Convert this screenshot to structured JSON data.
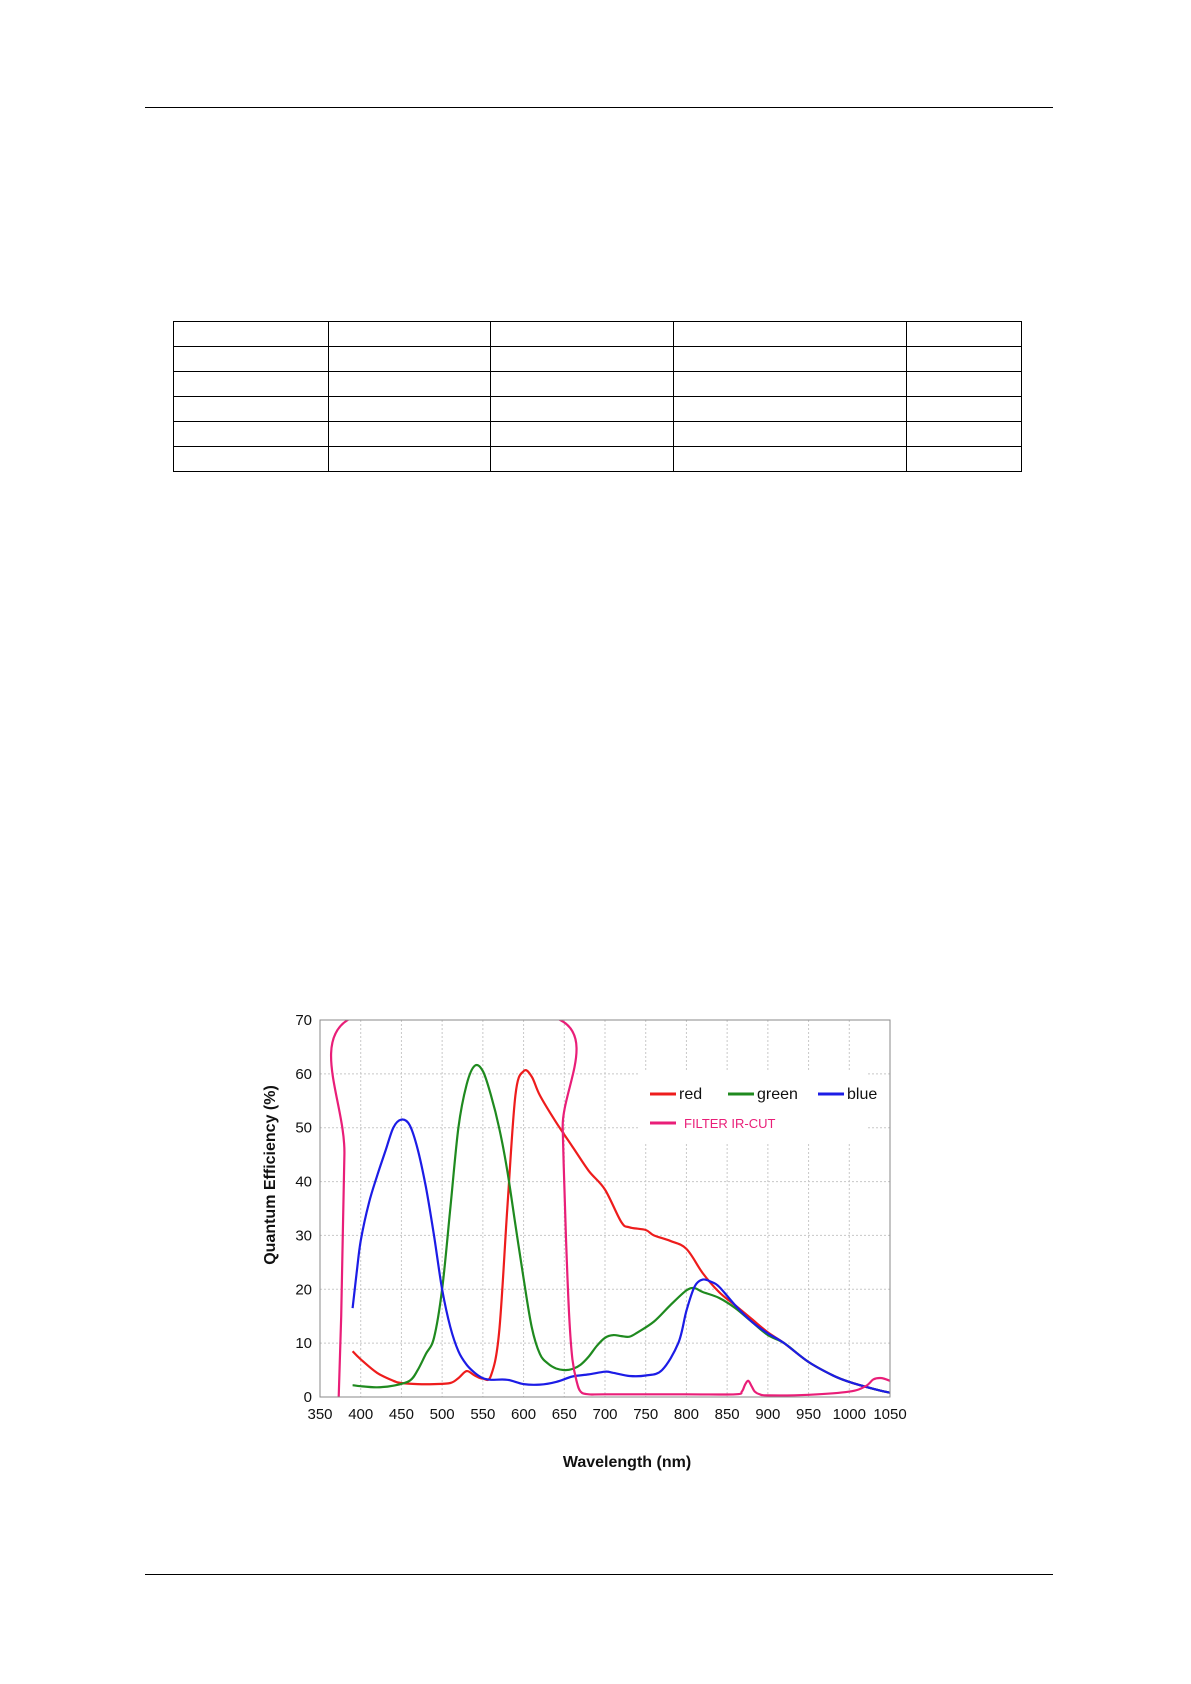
{
  "table": {
    "columns": 5,
    "rows": 6
  },
  "chart_data": {
    "type": "line",
    "xlabel": "Wavelength (nm)",
    "ylabel": "Quantum Efficiency (%)",
    "xlim": [
      350,
      1050
    ],
    "ylim": [
      0,
      70
    ],
    "xticks": [
      350,
      400,
      450,
      500,
      550,
      600,
      650,
      700,
      750,
      800,
      850,
      900,
      950,
      1000,
      1050
    ],
    "yticks": [
      0,
      10,
      20,
      30,
      40,
      50,
      60,
      70
    ],
    "grid": true,
    "legend_position": "top-right",
    "series": [
      {
        "name": "red",
        "color": "#ee1c1c",
        "width": 2.2,
        "points": [
          [
            390,
            8.5
          ],
          [
            400,
            7
          ],
          [
            420,
            4.5
          ],
          [
            440,
            3
          ],
          [
            450,
            2.6
          ],
          [
            470,
            2.4
          ],
          [
            490,
            2.4
          ],
          [
            510,
            2.6
          ],
          [
            520,
            3.5
          ],
          [
            530,
            4.8
          ],
          [
            540,
            4
          ],
          [
            550,
            3.4
          ],
          [
            560,
            4
          ],
          [
            570,
            12
          ],
          [
            580,
            35
          ],
          [
            590,
            56
          ],
          [
            600,
            60.5
          ],
          [
            610,
            59.5
          ],
          [
            620,
            56
          ],
          [
            640,
            51
          ],
          [
            660,
            46.5
          ],
          [
            680,
            42
          ],
          [
            700,
            38.5
          ],
          [
            720,
            32.5
          ],
          [
            730,
            31.5
          ],
          [
            750,
            31
          ],
          [
            760,
            30
          ],
          [
            780,
            29
          ],
          [
            800,
            27.5
          ],
          [
            820,
            23
          ],
          [
            840,
            19.5
          ],
          [
            860,
            17
          ],
          [
            880,
            14.5
          ],
          [
            900,
            12
          ],
          [
            920,
            10
          ],
          [
            950,
            6.5
          ],
          [
            980,
            4
          ],
          [
            1000,
            2.8
          ],
          [
            1030,
            1.5
          ],
          [
            1050,
            0.8
          ]
        ]
      },
      {
        "name": "green",
        "color": "#1f8a1f",
        "width": 2.2,
        "points": [
          [
            390,
            2.2
          ],
          [
            400,
            2
          ],
          [
            420,
            1.8
          ],
          [
            440,
            2.1
          ],
          [
            460,
            3
          ],
          [
            470,
            5
          ],
          [
            480,
            8
          ],
          [
            490,
            11
          ],
          [
            500,
            20
          ],
          [
            510,
            35
          ],
          [
            520,
            50
          ],
          [
            530,
            58
          ],
          [
            540,
            61.5
          ],
          [
            550,
            60.5
          ],
          [
            560,
            56
          ],
          [
            570,
            50
          ],
          [
            580,
            42
          ],
          [
            590,
            32
          ],
          [
            600,
            22
          ],
          [
            610,
            13
          ],
          [
            620,
            8
          ],
          [
            630,
            6.2
          ],
          [
            640,
            5.3
          ],
          [
            650,
            5
          ],
          [
            660,
            5.2
          ],
          [
            670,
            6
          ],
          [
            680,
            7.5
          ],
          [
            690,
            9.5
          ],
          [
            700,
            11
          ],
          [
            710,
            11.5
          ],
          [
            720,
            11.3
          ],
          [
            730,
            11.2
          ],
          [
            740,
            12
          ],
          [
            760,
            14
          ],
          [
            780,
            17
          ],
          [
            800,
            19.8
          ],
          [
            810,
            20.2
          ],
          [
            820,
            19.5
          ],
          [
            840,
            18.4
          ],
          [
            860,
            16.5
          ],
          [
            880,
            14
          ],
          [
            900,
            11.5
          ],
          [
            920,
            10
          ],
          [
            950,
            6.5
          ],
          [
            980,
            4
          ],
          [
            1000,
            2.8
          ],
          [
            1030,
            1.5
          ],
          [
            1050,
            0.8
          ]
        ]
      },
      {
        "name": "blue",
        "color": "#1c1ce6",
        "width": 2.2,
        "points": [
          [
            390,
            16.5
          ],
          [
            395,
            23
          ],
          [
            400,
            29
          ],
          [
            410,
            36
          ],
          [
            420,
            41
          ],
          [
            430,
            45.5
          ],
          [
            440,
            50
          ],
          [
            450,
            51.5
          ],
          [
            460,
            50.5
          ],
          [
            470,
            46
          ],
          [
            480,
            39
          ],
          [
            490,
            30
          ],
          [
            500,
            20
          ],
          [
            510,
            13
          ],
          [
            520,
            8.5
          ],
          [
            530,
            6
          ],
          [
            540,
            4.5
          ],
          [
            550,
            3.5
          ],
          [
            560,
            3.2
          ],
          [
            580,
            3.2
          ],
          [
            600,
            2.4
          ],
          [
            620,
            2.3
          ],
          [
            640,
            2.8
          ],
          [
            660,
            3.8
          ],
          [
            680,
            4.2
          ],
          [
            700,
            4.7
          ],
          [
            710,
            4.5
          ],
          [
            730,
            3.9
          ],
          [
            750,
            4
          ],
          [
            770,
            5
          ],
          [
            790,
            10
          ],
          [
            800,
            16
          ],
          [
            810,
            20.5
          ],
          [
            820,
            21.8
          ],
          [
            830,
            21.4
          ],
          [
            840,
            20.5
          ],
          [
            860,
            17
          ],
          [
            880,
            14
          ],
          [
            900,
            11.8
          ],
          [
            920,
            10
          ],
          [
            950,
            6.5
          ],
          [
            980,
            4
          ],
          [
            1000,
            2.8
          ],
          [
            1030,
            1.5
          ],
          [
            1050,
            0.8
          ]
        ]
      },
      {
        "name": "FILTER IR-CUT",
        "color": "#e91e78",
        "width": 2.2,
        "points": [
          [
            373,
            0
          ],
          [
            376,
            15
          ],
          [
            380,
            45
          ],
          [
            384,
            70
          ],
          [
            645,
            70
          ],
          [
            648,
            50
          ],
          [
            652,
            30
          ],
          [
            656,
            15
          ],
          [
            660,
            7
          ],
          [
            665,
            3
          ],
          [
            670,
            1
          ],
          [
            680,
            0.5
          ],
          [
            700,
            0.5
          ],
          [
            800,
            0.5
          ],
          [
            860,
            0.5
          ],
          [
            868,
            1
          ],
          [
            872,
            2.3
          ],
          [
            876,
            3
          ],
          [
            880,
            2
          ],
          [
            884,
            1
          ],
          [
            890,
            0.5
          ],
          [
            900,
            0.3
          ],
          [
            950,
            0.4
          ],
          [
            1000,
            1
          ],
          [
            1020,
            2
          ],
          [
            1030,
            3.3
          ],
          [
            1040,
            3.5
          ],
          [
            1050,
            3
          ]
        ]
      }
    ]
  }
}
